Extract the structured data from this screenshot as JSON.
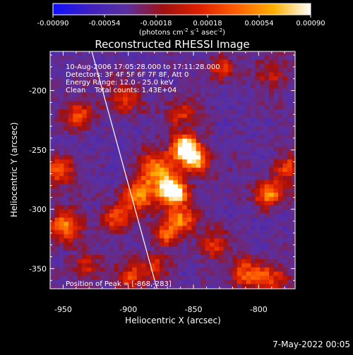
{
  "chart_data": {
    "type": "heatmap",
    "title": "Reconstructed RHESSI Image",
    "xlabel": "Heliocentric X (arcsec)",
    "ylabel": "Heliocentric Y (arcsec)",
    "xlim": [
      -960,
      -772
    ],
    "ylim": [
      -367,
      -167
    ],
    "x_ticks": [
      -950,
      -900,
      -850,
      -800
    ],
    "y_ticks": [
      -200,
      -250,
      -300,
      -350
    ],
    "colorbar": {
      "min": -0.0009,
      "max": 0.0009,
      "tick_values": [
        -0.0009,
        -0.00054,
        -0.00018,
        0.00018,
        0.00054,
        0.0009
      ],
      "tick_labels": [
        "-0.00090",
        "-0.00054",
        "-0.00018",
        "0.00018",
        "0.00054",
        "0.00090"
      ],
      "units_prefix": "(photons cm",
      "units_e1": "-2",
      "units_mid": " s",
      "units_e2": "-1",
      "units_mid2": " asec",
      "units_e3": "-2",
      "units_suffix": ")"
    },
    "colormap": [
      "#1010ff",
      "#4020c0",
      "#5a30a0",
      "#a01010",
      "#e02000",
      "#ff6000",
      "#ffb000",
      "#ffffff"
    ],
    "annotations": {
      "time_range": "10-Aug-2006 17:05:28.000 to 17:11:28.000",
      "detectors": "Detectors: 3F 4F 5F 6F 7F 8F, Att 0",
      "energy_range": "Energy Range: 12.0 - 25.0 keV",
      "clean_counts": "Clean    Total counts: 1.43E+04",
      "peak": "Position of Peak = [-868,-283]"
    },
    "peak": {
      "x": -868,
      "y": -283
    },
    "limb_line": [
      [
        -928,
        -167
      ],
      [
        -878,
        -367
      ]
    ],
    "sources": [
      {
        "x": -868,
        "y": -283,
        "amp": 1.0,
        "sigma": 7
      },
      {
        "x": -858,
        "y": -246,
        "amp": 0.8,
        "sigma": 8
      },
      {
        "x": -850,
        "y": -258,
        "amp": 0.6,
        "sigma": 7
      },
      {
        "x": -880,
        "y": -265,
        "amp": 0.55,
        "sigma": 10
      },
      {
        "x": -862,
        "y": -305,
        "amp": 0.5,
        "sigma": 9
      },
      {
        "x": -873,
        "y": -320,
        "amp": 0.4,
        "sigma": 7
      },
      {
        "x": -893,
        "y": -287,
        "amp": 0.5,
        "sigma": 9
      },
      {
        "x": -910,
        "y": -305,
        "amp": 0.4,
        "sigma": 8
      },
      {
        "x": -940,
        "y": -220,
        "amp": 0.45,
        "sigma": 8
      },
      {
        "x": -955,
        "y": -265,
        "amp": 0.45,
        "sigma": 8
      },
      {
        "x": -950,
        "y": -312,
        "amp": 0.5,
        "sigma": 9
      },
      {
        "x": -905,
        "y": -205,
        "amp": 0.35,
        "sigma": 9
      },
      {
        "x": -860,
        "y": -218,
        "amp": 0.3,
        "sigma": 8
      },
      {
        "x": -830,
        "y": -180,
        "amp": 0.35,
        "sigma": 7
      },
      {
        "x": -792,
        "y": -186,
        "amp": 0.25,
        "sigma": 9
      },
      {
        "x": -793,
        "y": -285,
        "amp": 0.5,
        "sigma": 8
      },
      {
        "x": -780,
        "y": -262,
        "amp": 0.35,
        "sigma": 7
      },
      {
        "x": -810,
        "y": -353,
        "amp": 0.45,
        "sigma": 9
      },
      {
        "x": -790,
        "y": -357,
        "amp": 0.35,
        "sigma": 8
      },
      {
        "x": -900,
        "y": -355,
        "amp": 0.35,
        "sigma": 9
      },
      {
        "x": -835,
        "y": -330,
        "amp": 0.35,
        "sigma": 8
      },
      {
        "x": -880,
        "y": -345,
        "amp": 0.3,
        "sigma": 7
      },
      {
        "x": -935,
        "y": -345,
        "amp": 0.3,
        "sigma": 8
      }
    ]
  },
  "footer": {
    "timestamp": "7-May-2022 00:05"
  }
}
